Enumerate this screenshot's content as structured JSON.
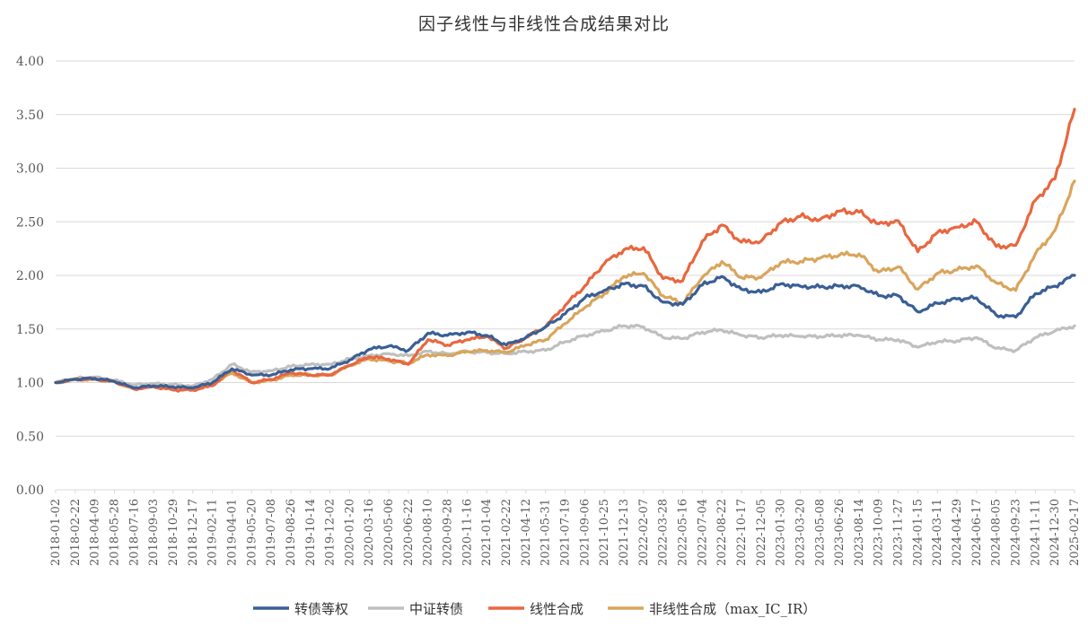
{
  "chart_data": {
    "type": "line",
    "title": "因子线性与非线性合成结果对比",
    "xlabel": "",
    "ylabel": "",
    "ylim": [
      0,
      4
    ],
    "yticks": [
      "0.00",
      "0.50",
      "1.00",
      "1.50",
      "2.00",
      "2.50",
      "3.00",
      "3.50",
      "4.00"
    ],
    "grid": "horizontal",
    "legend_position": "bottom",
    "x_tick_labels": [
      "2018-01-02",
      "2018-02-22",
      "2018-04-09",
      "2018-05-28",
      "2018-07-16",
      "2018-09-03",
      "2018-10-29",
      "2018-12-17",
      "2019-02-11",
      "2019-04-01",
      "2019-05-20",
      "2019-07-08",
      "2019-08-26",
      "2019-10-14",
      "2019-12-02",
      "2020-01-20",
      "2020-03-16",
      "2020-05-06",
      "2020-06-22",
      "2020-08-10",
      "2020-09-28",
      "2020-11-16",
      "2021-01-04",
      "2021-02-22",
      "2021-04-12",
      "2021-05-31",
      "2021-07-19",
      "2021-09-06",
      "2021-10-25",
      "2021-12-13",
      "2022-02-07",
      "2022-03-28",
      "2022-05-16",
      "2022-07-04",
      "2022-08-22",
      "2022-10-17",
      "2022-12-05",
      "2023-01-30",
      "2023-03-20",
      "2023-05-08",
      "2023-06-26",
      "2023-08-14",
      "2023-10-09",
      "2023-11-27",
      "2024-01-15",
      "2024-03-11",
      "2024-04-29",
      "2024-06-17",
      "2024-08-05",
      "2024-09-23",
      "2024-11-11",
      "2024-12-30",
      "2025-02-17"
    ],
    "x": [
      "2018-01-02",
      "2018-02-22",
      "2018-04-09",
      "2018-05-28",
      "2018-07-16",
      "2018-09-03",
      "2018-10-29",
      "2018-12-17",
      "2019-02-11",
      "2019-04-01",
      "2019-05-20",
      "2019-07-08",
      "2019-08-26",
      "2019-10-14",
      "2019-12-02",
      "2020-01-20",
      "2020-03-16",
      "2020-05-06",
      "2020-06-22",
      "2020-08-10",
      "2020-09-28",
      "2020-11-16",
      "2021-01-04",
      "2021-02-22",
      "2021-04-12",
      "2021-05-31",
      "2021-07-19",
      "2021-09-06",
      "2021-10-25",
      "2021-12-13",
      "2022-02-07",
      "2022-03-28",
      "2022-05-16",
      "2022-07-04",
      "2022-08-22",
      "2022-10-17",
      "2022-12-05",
      "2023-01-30",
      "2023-03-20",
      "2023-05-08",
      "2023-06-26",
      "2023-08-14",
      "2023-10-09",
      "2023-11-27",
      "2024-01-15",
      "2024-03-11",
      "2024-04-29",
      "2024-06-17",
      "2024-08-05",
      "2024-09-23",
      "2024-11-11",
      "2024-12-30",
      "2025-02-17"
    ],
    "series": [
      {
        "name": "中证转债",
        "color": "#BFBFBF",
        "values": [
          1.0,
          1.04,
          1.05,
          1.02,
          0.98,
          0.99,
          0.98,
          0.97,
          1.03,
          1.17,
          1.1,
          1.11,
          1.15,
          1.17,
          1.17,
          1.22,
          1.25,
          1.27,
          1.25,
          1.29,
          1.27,
          1.29,
          1.28,
          1.27,
          1.29,
          1.3,
          1.38,
          1.44,
          1.48,
          1.53,
          1.52,
          1.42,
          1.41,
          1.47,
          1.49,
          1.44,
          1.42,
          1.44,
          1.43,
          1.43,
          1.44,
          1.44,
          1.4,
          1.4,
          1.33,
          1.38,
          1.39,
          1.42,
          1.32,
          1.3,
          1.42,
          1.48,
          1.53
        ]
      },
      {
        "name": "非线性合成（max_IC_IR）",
        "color": "#D9A55C",
        "values": [
          1.0,
          1.03,
          1.03,
          1.01,
          0.94,
          0.97,
          0.95,
          0.94,
          0.99,
          1.09,
          1.0,
          1.02,
          1.07,
          1.07,
          1.07,
          1.16,
          1.22,
          1.2,
          1.18,
          1.26,
          1.25,
          1.29,
          1.3,
          1.28,
          1.35,
          1.4,
          1.55,
          1.7,
          1.83,
          1.99,
          2.02,
          1.81,
          1.74,
          1.98,
          2.13,
          1.98,
          1.98,
          2.12,
          2.13,
          2.16,
          2.19,
          2.2,
          2.03,
          2.08,
          1.87,
          2.02,
          2.05,
          2.09,
          1.93,
          1.86,
          2.2,
          2.42,
          2.88
        ]
      },
      {
        "name": "线性合成",
        "color": "#E8673F",
        "values": [
          1.0,
          1.03,
          1.03,
          1.01,
          0.94,
          0.96,
          0.93,
          0.93,
          0.97,
          1.12,
          1.0,
          1.03,
          1.09,
          1.07,
          1.07,
          1.16,
          1.24,
          1.22,
          1.17,
          1.4,
          1.35,
          1.4,
          1.43,
          1.32,
          1.42,
          1.52,
          1.72,
          1.9,
          2.11,
          2.24,
          2.26,
          1.97,
          1.95,
          2.32,
          2.47,
          2.31,
          2.32,
          2.49,
          2.55,
          2.52,
          2.6,
          2.59,
          2.48,
          2.51,
          2.22,
          2.4,
          2.45,
          2.5,
          2.27,
          2.28,
          2.7,
          2.9,
          3.55
        ]
      },
      {
        "name": "转债等权",
        "color": "#3A5F95",
        "values": [
          1.0,
          1.03,
          1.04,
          1.01,
          0.95,
          0.97,
          0.96,
          0.95,
          1.0,
          1.13,
          1.07,
          1.07,
          1.12,
          1.13,
          1.13,
          1.21,
          1.31,
          1.34,
          1.3,
          1.46,
          1.44,
          1.47,
          1.44,
          1.35,
          1.42,
          1.52,
          1.64,
          1.79,
          1.86,
          1.92,
          1.9,
          1.75,
          1.73,
          1.91,
          1.99,
          1.87,
          1.84,
          1.92,
          1.9,
          1.89,
          1.9,
          1.9,
          1.81,
          1.81,
          1.66,
          1.74,
          1.78,
          1.79,
          1.63,
          1.61,
          1.83,
          1.9,
          2.0
        ]
      }
    ],
    "legend_order": [
      "转债等权",
      "中证转债",
      "线性合成",
      "非线性合成（max_IC_IR）"
    ]
  }
}
